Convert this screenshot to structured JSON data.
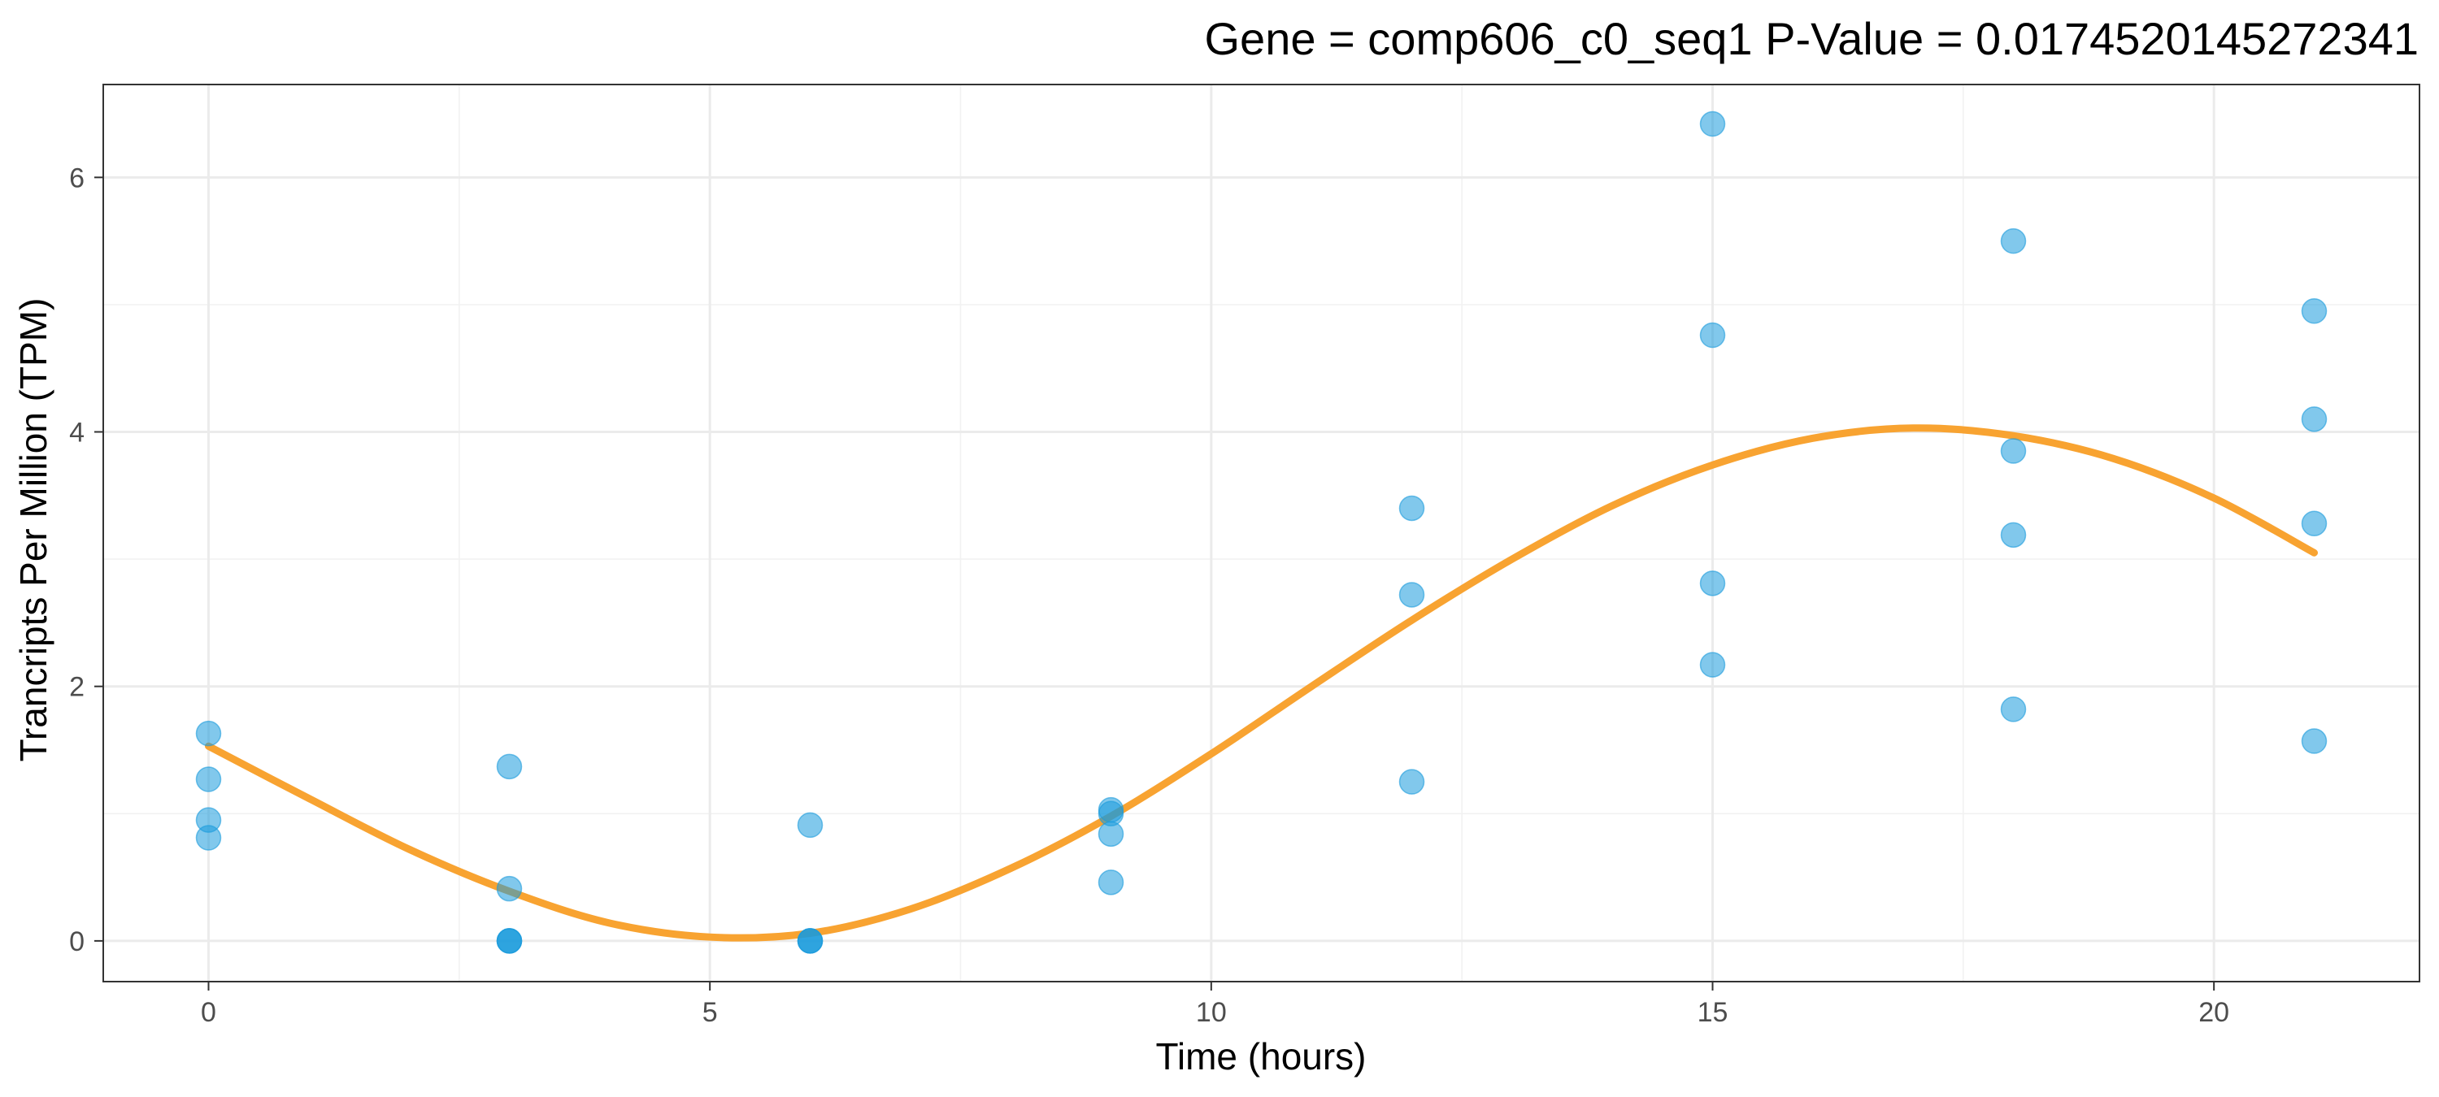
{
  "chart_data": {
    "type": "scatter",
    "title": "Gene =  comp606_c0_seq1  P-Value =  0.0174520145272341",
    "xlabel": "Time (hours)",
    "ylabel": "Trancripts Per Million (TPM)",
    "xlim": [
      -1.05,
      22.05
    ],
    "ylim": [
      -0.32,
      6.73
    ],
    "x_ticks": [
      0,
      5,
      10,
      15,
      20
    ],
    "x_tick_labels": [
      "0",
      "5",
      "10",
      "15",
      "20"
    ],
    "y_ticks": [
      0,
      2,
      4,
      6
    ],
    "y_tick_labels": [
      "0",
      "2",
      "4",
      "6"
    ],
    "grid": true,
    "legend": "none",
    "colors": {
      "points": "#1a9bdc",
      "fit_line": "#f8a331",
      "panel_border": "#333333",
      "grid": "#ebebeb"
    },
    "series": [
      {
        "type": "scatter",
        "points": [
          [
            0,
            1.63
          ],
          [
            0,
            1.27
          ],
          [
            0,
            0.95
          ],
          [
            0,
            0.81
          ],
          [
            3,
            1.37
          ],
          [
            3,
            0.41
          ],
          [
            3,
            0.0
          ],
          [
            3,
            0.0
          ],
          [
            3,
            0.0
          ],
          [
            6,
            0.91
          ],
          [
            6,
            0.0
          ],
          [
            6,
            0.0
          ],
          [
            6,
            0.0
          ],
          [
            9,
            1.03
          ],
          [
            9,
            1.0
          ],
          [
            9,
            0.84
          ],
          [
            9,
            0.46
          ],
          [
            12,
            3.4
          ],
          [
            12,
            2.72
          ],
          [
            12,
            1.25
          ],
          [
            15,
            6.42
          ],
          [
            15,
            4.76
          ],
          [
            15,
            2.81
          ],
          [
            15,
            2.17
          ],
          [
            18,
            5.5
          ],
          [
            18,
            3.85
          ],
          [
            18,
            3.19
          ],
          [
            18,
            1.82
          ],
          [
            21,
            4.95
          ],
          [
            21,
            4.1
          ],
          [
            21,
            3.28
          ],
          [
            21,
            1.57
          ]
        ]
      },
      {
        "type": "line",
        "points": [
          [
            0,
            1.53
          ],
          [
            1,
            1.12
          ],
          [
            2,
            0.72
          ],
          [
            3,
            0.39
          ],
          [
            4,
            0.14
          ],
          [
            5,
            0.03
          ],
          [
            6,
            0.06
          ],
          [
            7,
            0.25
          ],
          [
            8,
            0.57
          ],
          [
            9,
            0.98
          ],
          [
            10,
            1.47
          ],
          [
            11,
            2.0
          ],
          [
            12,
            2.52
          ],
          [
            13,
            3.0
          ],
          [
            14,
            3.42
          ],
          [
            15,
            3.74
          ],
          [
            16,
            3.95
          ],
          [
            17,
            4.03
          ],
          [
            18,
            3.97
          ],
          [
            19,
            3.79
          ],
          [
            20,
            3.48
          ],
          [
            21,
            3.05
          ]
        ]
      }
    ]
  }
}
